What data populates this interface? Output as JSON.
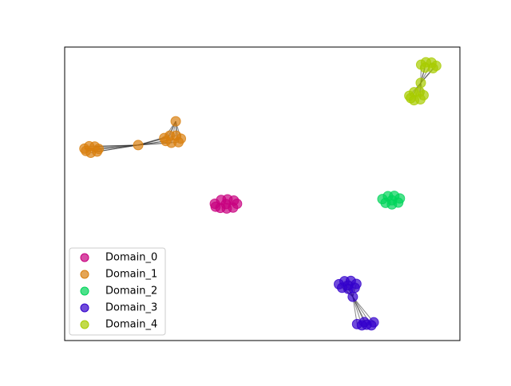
{
  "chart_data": {
    "type": "scatter",
    "xlim": [
      0,
      100
    ],
    "ylim": [
      0,
      100
    ],
    "legend": "lower left",
    "series": [
      {
        "name": "Domain_0",
        "color": "#c8007f",
        "x": [
          38,
          39.6,
          41.2,
          42.8,
          43.6,
          42.6,
          41,
          39.4,
          38.2,
          40.8
        ],
        "y": [
          46.6,
          47.9,
          48.1,
          47.7,
          46.6,
          45.3,
          45,
          45.2,
          45.6,
          46.5
        ],
        "edges": []
      },
      {
        "name": "Domain_1",
        "color": "#d97f0e",
        "x": [
          5,
          6.2,
          7.6,
          8.6,
          8.2,
          6.6,
          5.4,
          18.6,
          25.2,
          26.6,
          28.2,
          29.4,
          28.8,
          27,
          25.6,
          28.1
        ],
        "y": [
          65.4,
          66.2,
          66.1,
          65.3,
          64.4,
          64,
          64.6,
          66.6,
          69,
          69.8,
          69.8,
          68.8,
          67.6,
          67.4,
          68,
          74.7
        ],
        "edges": [
          [
            0,
            7
          ],
          [
            1,
            7
          ],
          [
            2,
            7
          ],
          [
            3,
            7
          ],
          [
            4,
            7
          ],
          [
            5,
            7
          ],
          [
            6,
            7
          ],
          [
            7,
            8
          ],
          [
            7,
            9
          ],
          [
            7,
            10
          ],
          [
            7,
            11
          ],
          [
            7,
            12
          ],
          [
            7,
            13
          ],
          [
            7,
            14
          ],
          [
            15,
            8
          ],
          [
            15,
            9
          ],
          [
            15,
            10
          ],
          [
            15,
            11
          ],
          [
            15,
            12
          ],
          [
            15,
            13
          ],
          [
            15,
            14
          ]
        ]
      },
      {
        "name": "Domain_2",
        "color": "#00d45a",
        "x": [
          80.4,
          81.8,
          83.4,
          84.8,
          84.4,
          82.8,
          81.2,
          82.8
        ],
        "y": [
          48.2,
          49.2,
          49.3,
          48.4,
          47,
          46.4,
          46.9,
          47.8
        ],
        "edges": []
      },
      {
        "name": "Domain_3",
        "color": "#3300cc",
        "x": [
          69.4,
          70.8,
          72.4,
          73.8,
          73.4,
          71.8,
          70.2,
          71.7,
          72.9,
          74,
          75.2,
          76.4,
          77.6,
          78.2,
          75.8
        ],
        "y": [
          19.2,
          20.2,
          20.3,
          19.3,
          18,
          17.6,
          18,
          18.8,
          14.9,
          5.6,
          5.2,
          5.4,
          5.2,
          6.2,
          6.3
        ],
        "edges": [
          [
            0,
            8
          ],
          [
            1,
            8
          ],
          [
            2,
            8
          ],
          [
            3,
            8
          ],
          [
            4,
            8
          ],
          [
            5,
            8
          ],
          [
            6,
            8
          ],
          [
            7,
            8
          ],
          [
            8,
            9
          ],
          [
            8,
            10
          ],
          [
            8,
            11
          ],
          [
            8,
            12
          ],
          [
            8,
            13
          ],
          [
            8,
            14
          ]
        ]
      },
      {
        "name": "Domain_4",
        "color": "#a8cc00",
        "x": [
          90.2,
          91.4,
          92.8,
          94,
          93.2,
          91.2,
          90.1,
          87.2,
          88.4,
          89.8,
          90.8,
          90,
          88.4,
          87.6
        ],
        "y": [
          94,
          94.8,
          94.7,
          93.6,
          92.8,
          93,
          87.8,
          83.4,
          84.6,
          84.7,
          83.6,
          82.2,
          81.9,
          82.6
        ],
        "edges": [
          [
            0,
            6
          ],
          [
            1,
            6
          ],
          [
            2,
            6
          ],
          [
            3,
            6
          ],
          [
            4,
            6
          ],
          [
            5,
            6
          ],
          [
            6,
            7
          ],
          [
            6,
            8
          ],
          [
            6,
            9
          ],
          [
            6,
            10
          ],
          [
            6,
            11
          ],
          [
            6,
            12
          ],
          [
            6,
            13
          ]
        ]
      }
    ]
  }
}
